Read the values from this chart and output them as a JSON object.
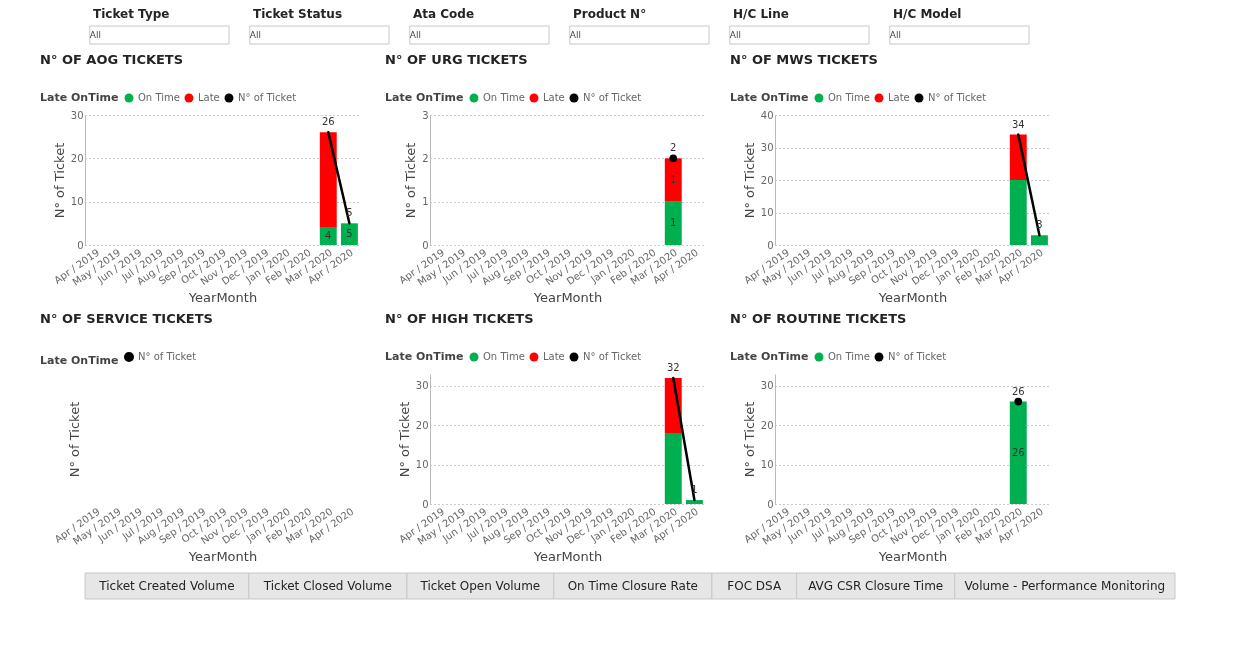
{
  "chart_data": [
    {
      "type": "other",
      "categories": [
        "Ticket Type",
        "Ticket Status",
        "Ata Code",
        "Product N°",
        "H/C Line",
        "H/C Model"
      ],
      "annotations": [
        "All",
        "All",
        "All",
        "All",
        "All",
        "All"
      ]
    },
    {
      "type": "bar",
      "title": "N° OF AOG TICKETS",
      "xlabel": "YearMonth",
      "ylabel": "N° of Ticket",
      "legend_title": "Late OnTime",
      "legend": "top left",
      "grid": "y",
      "stacked": true,
      "ylim": [
        0,
        30
      ],
      "yticks": [
        0,
        10,
        20,
        30
      ],
      "categories": [
        "Apr / 2019",
        "May / 2019",
        "Jun / 2019",
        "Jul / 2019",
        "Aug / 2019",
        "Sep / 2019",
        "Oct / 2019",
        "Nov / 2019",
        "Dec / 2019",
        "Jan / 2020",
        "Feb / 2020",
        "Mar / 2020",
        "Apr / 2020"
      ],
      "series": [
        {
          "name": "On Time",
          "color": "#00b050",
          "values": [
            null,
            null,
            null,
            null,
            null,
            null,
            null,
            null,
            null,
            null,
            null,
            4,
            5
          ],
          "value_labels": [
            null,
            null,
            null,
            null,
            null,
            null,
            null,
            null,
            null,
            null,
            null,
            "4",
            "5"
          ]
        },
        {
          "name": "Late",
          "color": "#ff0000",
          "values": [
            null,
            null,
            null,
            null,
            null,
            null,
            null,
            null,
            null,
            null,
            null,
            22,
            null
          ]
        },
        {
          "name": "N° of Ticket",
          "type": "line",
          "color": "#000000",
          "values": [
            null,
            null,
            null,
            null,
            null,
            null,
            null,
            null,
            null,
            null,
            null,
            26,
            5
          ],
          "value_labels": [
            null,
            null,
            null,
            null,
            null,
            null,
            null,
            null,
            null,
            null,
            null,
            "26",
            "5"
          ]
        }
      ]
    },
    {
      "type": "bar",
      "title": "N° OF URG TICKETS",
      "xlabel": "YearMonth",
      "ylabel": "N° of Ticket",
      "legend_title": "Late OnTime",
      "legend": "top left",
      "grid": "y",
      "stacked": true,
      "ylim": [
        0,
        3
      ],
      "yticks": [
        0,
        1,
        2,
        3
      ],
      "categories": [
        "Apr / 2019",
        "May / 2019",
        "Jun / 2019",
        "Jul / 2019",
        "Aug / 2019",
        "Sep / 2019",
        "Oct / 2019",
        "Nov / 2019",
        "Dec / 2019",
        "Jan / 2020",
        "Feb / 2020",
        "Mar / 2020",
        "Apr / 2020"
      ],
      "series": [
        {
          "name": "On Time",
          "color": "#00b050",
          "values": [
            null,
            null,
            null,
            null,
            null,
            null,
            null,
            null,
            null,
            null,
            null,
            1,
            null
          ],
          "value_labels": [
            null,
            null,
            null,
            null,
            null,
            null,
            null,
            null,
            null,
            null,
            null,
            "1",
            null
          ]
        },
        {
          "name": "Late",
          "color": "#ff0000",
          "values": [
            null,
            null,
            null,
            null,
            null,
            null,
            null,
            null,
            null,
            null,
            null,
            1,
            null
          ],
          "value_labels": [
            null,
            null,
            null,
            null,
            null,
            null,
            null,
            null,
            null,
            null,
            null,
            "1",
            null
          ]
        },
        {
          "name": "N° of Ticket",
          "type": "line",
          "marker": "circle",
          "color": "#000000",
          "values": [
            null,
            null,
            null,
            null,
            null,
            null,
            null,
            null,
            null,
            null,
            null,
            2,
            null
          ],
          "value_labels": [
            null,
            null,
            null,
            null,
            null,
            null,
            null,
            null,
            null,
            null,
            null,
            "2",
            null
          ]
        }
      ]
    },
    {
      "type": "bar",
      "title": "N° OF MWS TICKETS",
      "xlabel": "YearMonth",
      "ylabel": "N° of Ticket",
      "legend_title": "Late OnTime",
      "legend": "top left",
      "grid": "y",
      "stacked": true,
      "ylim": [
        0,
        40
      ],
      "yticks": [
        0,
        10,
        20,
        30,
        40
      ],
      "categories": [
        "Apr / 2019",
        "May / 2019",
        "Jun / 2019",
        "Jul / 2019",
        "Aug / 2019",
        "Sep / 2019",
        "Oct / 2019",
        "Nov / 2019",
        "Dec / 2019",
        "Jan / 2020",
        "Feb / 2020",
        "Mar / 2020",
        "Apr / 2020"
      ],
      "series": [
        {
          "name": "On Time",
          "color": "#00b050",
          "values": [
            null,
            null,
            null,
            null,
            null,
            null,
            null,
            null,
            null,
            null,
            null,
            20,
            3
          ]
        },
        {
          "name": "Late",
          "color": "#ff0000",
          "values": [
            null,
            null,
            null,
            null,
            null,
            null,
            null,
            null,
            null,
            null,
            null,
            14,
            null
          ]
        },
        {
          "name": "N° of Ticket",
          "type": "line",
          "color": "#000000",
          "values": [
            null,
            null,
            null,
            null,
            null,
            null,
            null,
            null,
            null,
            null,
            null,
            34,
            3
          ],
          "value_labels": [
            null,
            null,
            null,
            null,
            null,
            null,
            null,
            null,
            null,
            null,
            null,
            "34",
            "3"
          ]
        }
      ]
    },
    {
      "type": "other",
      "title": "N° OF SERVICE TICKETS",
      "xlabel": "YearMonth",
      "ylabel": "N° of Ticket",
      "legend_title": "Late OnTime",
      "legend": "top left",
      "categories": [
        "Apr / 2019",
        "May / 2019",
        "Jun / 2019",
        "Jul / 2019",
        "Aug / 2019",
        "Sep / 2019",
        "Oct / 2019",
        "Nov / 2019",
        "Dec / 2019",
        "Jan / 2020",
        "Feb / 2020",
        "Mar / 2020",
        "Apr / 2020"
      ],
      "series": [
        {
          "name": "N° of Ticket",
          "type": "line",
          "color": "#000000",
          "values": [
            null,
            null,
            null,
            null,
            null,
            null,
            null,
            null,
            null,
            null,
            null,
            null,
            null
          ]
        }
      ]
    },
    {
      "type": "bar",
      "title": "N° OF HIGH TICKETS",
      "xlabel": "YearMonth",
      "ylabel": "N° of Ticket",
      "legend_title": "Late OnTime",
      "legend": "top left",
      "grid": "y",
      "stacked": true,
      "ylim": [
        0,
        33
      ],
      "yticks": [
        0,
        10,
        20,
        30
      ],
      "categories": [
        "Apr / 2019",
        "May / 2019",
        "Jun / 2019",
        "Jul / 2019",
        "Aug / 2019",
        "Sep / 2019",
        "Oct / 2019",
        "Nov / 2019",
        "Dec / 2019",
        "Jan / 2020",
        "Feb / 2020",
        "Mar / 2020",
        "Apr / 2020"
      ],
      "series": [
        {
          "name": "On Time",
          "color": "#00b050",
          "values": [
            null,
            null,
            null,
            null,
            null,
            null,
            null,
            null,
            null,
            null,
            null,
            18,
            1
          ]
        },
        {
          "name": "Late",
          "color": "#ff0000",
          "values": [
            null,
            null,
            null,
            null,
            null,
            null,
            null,
            null,
            null,
            null,
            null,
            14,
            null
          ]
        },
        {
          "name": "N° of Ticket",
          "type": "line",
          "color": "#000000",
          "values": [
            null,
            null,
            null,
            null,
            null,
            null,
            null,
            null,
            null,
            null,
            null,
            32,
            1
          ],
          "value_labels": [
            null,
            null,
            null,
            null,
            null,
            null,
            null,
            null,
            null,
            null,
            null,
            "32",
            "1"
          ]
        }
      ]
    },
    {
      "type": "bar",
      "title": "N° OF ROUTINE TICKETS",
      "xlabel": "YearMonth",
      "ylabel": "N° of Ticket",
      "legend_title": "Late OnTime",
      "legend": "top left",
      "grid": "y",
      "stacked": true,
      "ylim": [
        0,
        33
      ],
      "yticks": [
        0,
        10,
        20,
        30
      ],
      "categories": [
        "Apr / 2019",
        "May / 2019",
        "Jun / 2019",
        "Jul / 2019",
        "Aug / 2019",
        "Sep / 2019",
        "Oct / 2019",
        "Nov / 2019",
        "Dec / 2019",
        "Jan / 2020",
        "Feb / 2020",
        "Mar / 2020",
        "Apr / 2020"
      ],
      "series": [
        {
          "name": "On Time",
          "color": "#00b050",
          "values": [
            null,
            null,
            null,
            null,
            null,
            null,
            null,
            null,
            null,
            null,
            null,
            26,
            null
          ],
          "value_labels": [
            null,
            null,
            null,
            null,
            null,
            null,
            null,
            null,
            null,
            null,
            null,
            "26",
            null
          ]
        },
        {
          "name": "N° of Ticket",
          "type": "line",
          "marker": "circle",
          "color": "#000000",
          "values": [
            null,
            null,
            null,
            null,
            null,
            null,
            null,
            null,
            null,
            null,
            null,
            26,
            null
          ],
          "value_labels": [
            null,
            null,
            null,
            null,
            null,
            null,
            null,
            null,
            null,
            null,
            null,
            "26",
            null
          ]
        }
      ]
    },
    {
      "type": "other",
      "categories": [
        "Ticket Created Volume",
        "Ticket Closed Volume",
        "Ticket Open Volume",
        "On Time Closure Rate",
        "FOC DSA",
        "AVG CSR Closure Time",
        "Volume - Performance Monitoring"
      ]
    }
  ]
}
